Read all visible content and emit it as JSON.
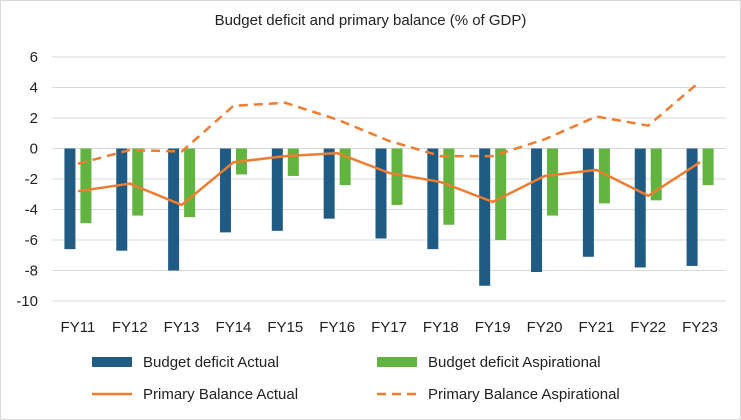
{
  "chart_data": {
    "type": "bar",
    "title": "Budget deficit and primary balance (% of GDP)",
    "xlabel": "",
    "ylabel": "",
    "ylim": [
      -10,
      6
    ],
    "yticks": [
      6,
      4,
      2,
      0,
      -2,
      -4,
      -6,
      -8,
      -10
    ],
    "grid": true,
    "legend_position": "bottom",
    "categories": [
      "FY11",
      "FY12",
      "FY13",
      "FY14",
      "FY15",
      "FY16",
      "FY17",
      "FY18",
      "FY19",
      "FY20",
      "FY21",
      "FY22",
      "FY23"
    ],
    "series": [
      {
        "name": "Budget deficit Actual",
        "kind": "bar",
        "color": "#1f5b82",
        "values": [
          -6.6,
          -6.7,
          -8.0,
          -5.5,
          -5.4,
          -4.6,
          -5.9,
          -6.6,
          -9.0,
          -8.1,
          -7.1,
          -7.8,
          -7.7
        ]
      },
      {
        "name": "Budget deficit Aspirational",
        "kind": "bar",
        "color": "#62b33f",
        "values": [
          -4.9,
          -4.4,
          -4.5,
          -1.7,
          -1.8,
          -2.4,
          -3.7,
          -5.0,
          -6.0,
          -4.4,
          -3.6,
          -3.4,
          -2.4
        ]
      },
      {
        "name": "Primary Balance  Actual",
        "kind": "line",
        "style": "solid",
        "color": "#ed7d31",
        "values": [
          -2.8,
          -2.3,
          -3.7,
          -0.9,
          -0.5,
          -0.3,
          -1.6,
          -2.2,
          -3.5,
          -1.8,
          -1.4,
          -3.1,
          -0.9
        ]
      },
      {
        "name": "Primary Balance  Aspirational",
        "kind": "line",
        "style": "dashed",
        "color": "#ed7d31",
        "values": [
          -1.0,
          -0.1,
          -0.2,
          2.8,
          3.0,
          1.9,
          0.5,
          -0.5,
          -0.5,
          0.6,
          2.1,
          1.5,
          4.4
        ]
      }
    ]
  }
}
